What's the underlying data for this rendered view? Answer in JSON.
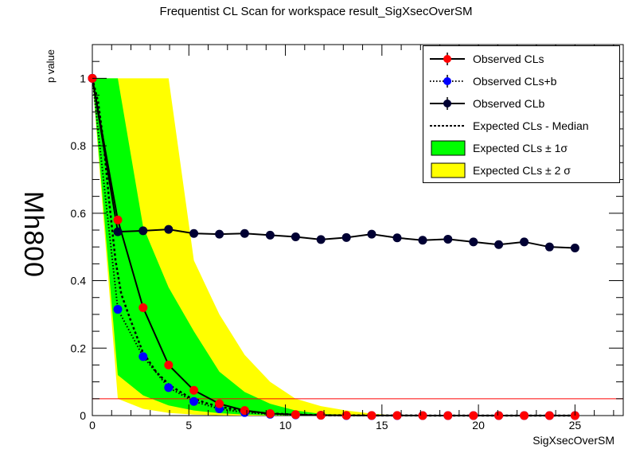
{
  "chart_data": {
    "type": "line",
    "title": "Frequentist CL Scan for workspace result_SigXsecOverSM",
    "xlabel": "SigXsecOverSM",
    "ylabel": "p value",
    "side_label": "Mh800",
    "xlim": [
      0,
      27.5
    ],
    "ylim": [
      0,
      1.1
    ],
    "x_ticks": [
      0,
      5,
      10,
      15,
      20,
      25
    ],
    "y_ticks": [
      0,
      0.2,
      0.4,
      0.6,
      0.8,
      1
    ],
    "threshold": 0.05,
    "legend": {
      "placement": "top-right",
      "entries": [
        "Observed CLs",
        "Observed CLs+b",
        "Observed CLb",
        "Expected CLs - Median",
        "Expected CLs ± 1σ",
        "Expected CLs ± 2 σ"
      ]
    },
    "x": [
      0,
      1.32,
      2.63,
      3.95,
      5.26,
      6.58,
      7.89,
      9.21,
      10.53,
      11.84,
      13.16,
      14.47,
      15.79,
      17.11,
      18.42,
      19.74,
      21.05,
      22.37,
      23.68,
      25.0
    ],
    "series": [
      {
        "name": "Observed CLs",
        "color": "#ff0000",
        "values": [
          1.0,
          0.58,
          0.32,
          0.15,
          0.075,
          0.035,
          0.015,
          0.006,
          0.003,
          0.001,
          0.0005,
          0.0003,
          0.0002,
          0.0001,
          0.0001,
          0.0,
          0.0,
          0.0,
          0.0,
          0.0
        ]
      },
      {
        "name": "Observed CLs+b",
        "color": "#0000ff",
        "values": [
          1.0,
          0.315,
          0.175,
          0.083,
          0.042,
          0.02,
          0.009,
          0.004,
          0.002,
          0.001,
          0.0,
          0.0,
          0.0,
          0.0,
          0.0,
          0.0,
          0.0,
          0.0,
          0.0,
          0.0
        ]
      },
      {
        "name": "Observed CLb",
        "color": "#000033",
        "values": [
          1.0,
          0.545,
          0.548,
          0.552,
          0.54,
          0.538,
          0.54,
          0.535,
          0.53,
          0.522,
          0.528,
          0.538,
          0.527,
          0.52,
          0.523,
          0.515,
          0.507,
          0.515,
          0.5,
          0.497
        ]
      }
    ],
    "expected_median": {
      "x": [
        0,
        0.3,
        0.6,
        0.9,
        1.2,
        1.5,
        2.0,
        2.6,
        3.3,
        4.0,
        5.0,
        6.0,
        7.0,
        8.0,
        9.0,
        10.5,
        12.0,
        14.0,
        16.0,
        20.0,
        25.0
      ],
      "values": [
        1.0,
        0.93,
        0.8,
        0.62,
        0.46,
        0.36,
        0.28,
        0.19,
        0.13,
        0.09,
        0.055,
        0.035,
        0.022,
        0.013,
        0.007,
        0.003,
        0.001,
        0.0005,
        0.0002,
        0.0,
        0.0
      ]
    },
    "band_1sigma": {
      "x": [
        0,
        1.32,
        2.63,
        3.95,
        5.26,
        6.58,
        7.89,
        9.21,
        10.53,
        11.84,
        13.16,
        14.47
      ],
      "lower": [
        1.0,
        0.12,
        0.06,
        0.03,
        0.015,
        0.007,
        0.003,
        0.001,
        0.0,
        0.0,
        0.0,
        0.0
      ],
      "upper": [
        1.0,
        1.0,
        0.56,
        0.38,
        0.25,
        0.13,
        0.07,
        0.035,
        0.015,
        0.005,
        0.002,
        0.0
      ]
    },
    "band_2sigma": {
      "x": [
        0,
        1.32,
        2.63,
        3.95,
        5.26,
        6.58,
        7.89,
        9.21,
        10.53,
        11.84,
        13.16,
        14.47,
        15.79
      ],
      "lower": [
        1.0,
        0.05,
        0.02,
        0.008,
        0.003,
        0.001,
        0.0,
        0.0,
        0.0,
        0.0,
        0.0,
        0.0,
        0.0
      ],
      "upper": [
        1.0,
        1.0,
        1.0,
        1.0,
        0.46,
        0.3,
        0.18,
        0.1,
        0.05,
        0.028,
        0.015,
        0.006,
        0.0
      ]
    },
    "colors": {
      "band_1sigma": "#00ff00",
      "band_2sigma": "#ffff00",
      "threshold": "#ff0000",
      "frame_fill": "#ebebeb"
    }
  }
}
